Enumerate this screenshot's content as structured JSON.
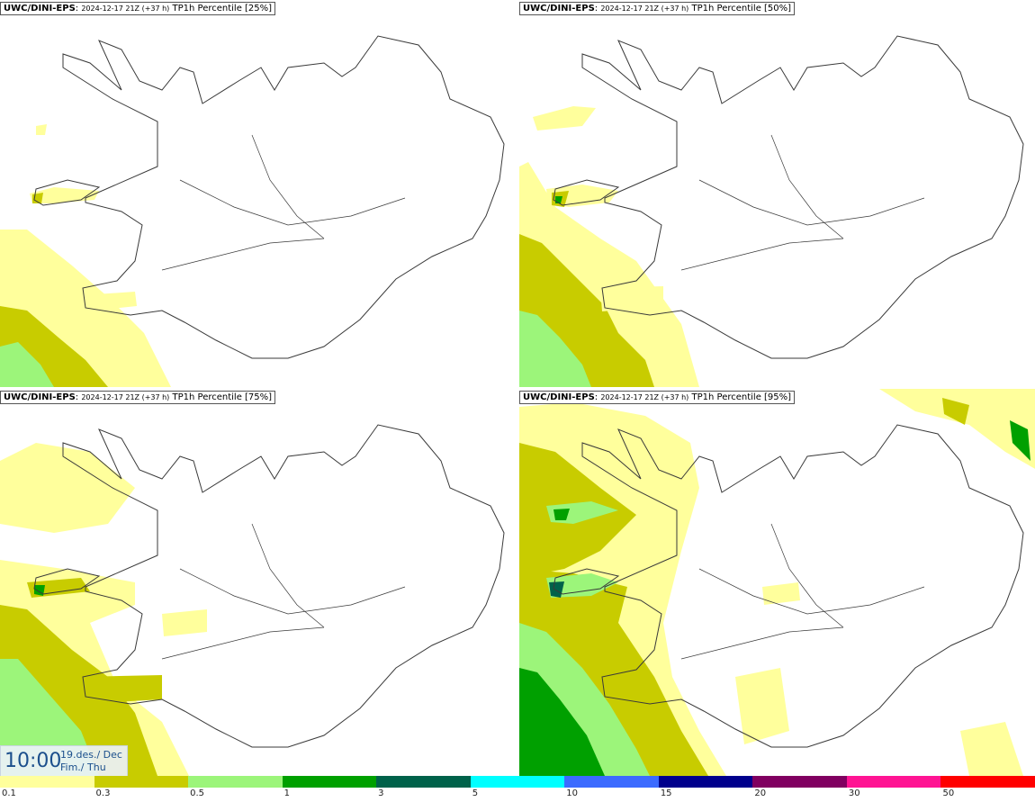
{
  "panels": [
    {
      "model": "UWC/DINI-EPS",
      "run": "2024-12-17 21Z (+37 h)",
      "field": "TP1h Percentile [25%]"
    },
    {
      "model": "UWC/DINI-EPS",
      "run": "2024-12-17 21Z (+37 h)",
      "field": "TP1h Percentile [50%]"
    },
    {
      "model": "UWC/DINI-EPS",
      "run": "2024-12-17 21Z (+37 h)",
      "field": "TP1h Percentile [75%]"
    },
    {
      "model": "UWC/DINI-EPS",
      "run": "2024-12-17 21Z (+37 h)",
      "field": "TP1h Percentile [95%]"
    }
  ],
  "valid_time": {
    "clock": "10:00",
    "date_line": "19.des./ Dec",
    "day_line": "Fim./ Thu"
  },
  "legend": {
    "ticks": [
      "0.1",
      "0.3",
      "0.5",
      "1",
      "3",
      "5",
      "10",
      "15",
      "20",
      "30",
      "50"
    ],
    "colors": [
      "#ffff9c",
      "#c8cc00",
      "#9cf57a",
      "#00a000",
      "#00624a",
      "#00ffff",
      "#3c6bff",
      "#00008c",
      "#800060",
      "#ff1493",
      "#ff0000"
    ]
  },
  "colors": {
    "coast": "#3a3a3a",
    "background": "#ffffff"
  }
}
